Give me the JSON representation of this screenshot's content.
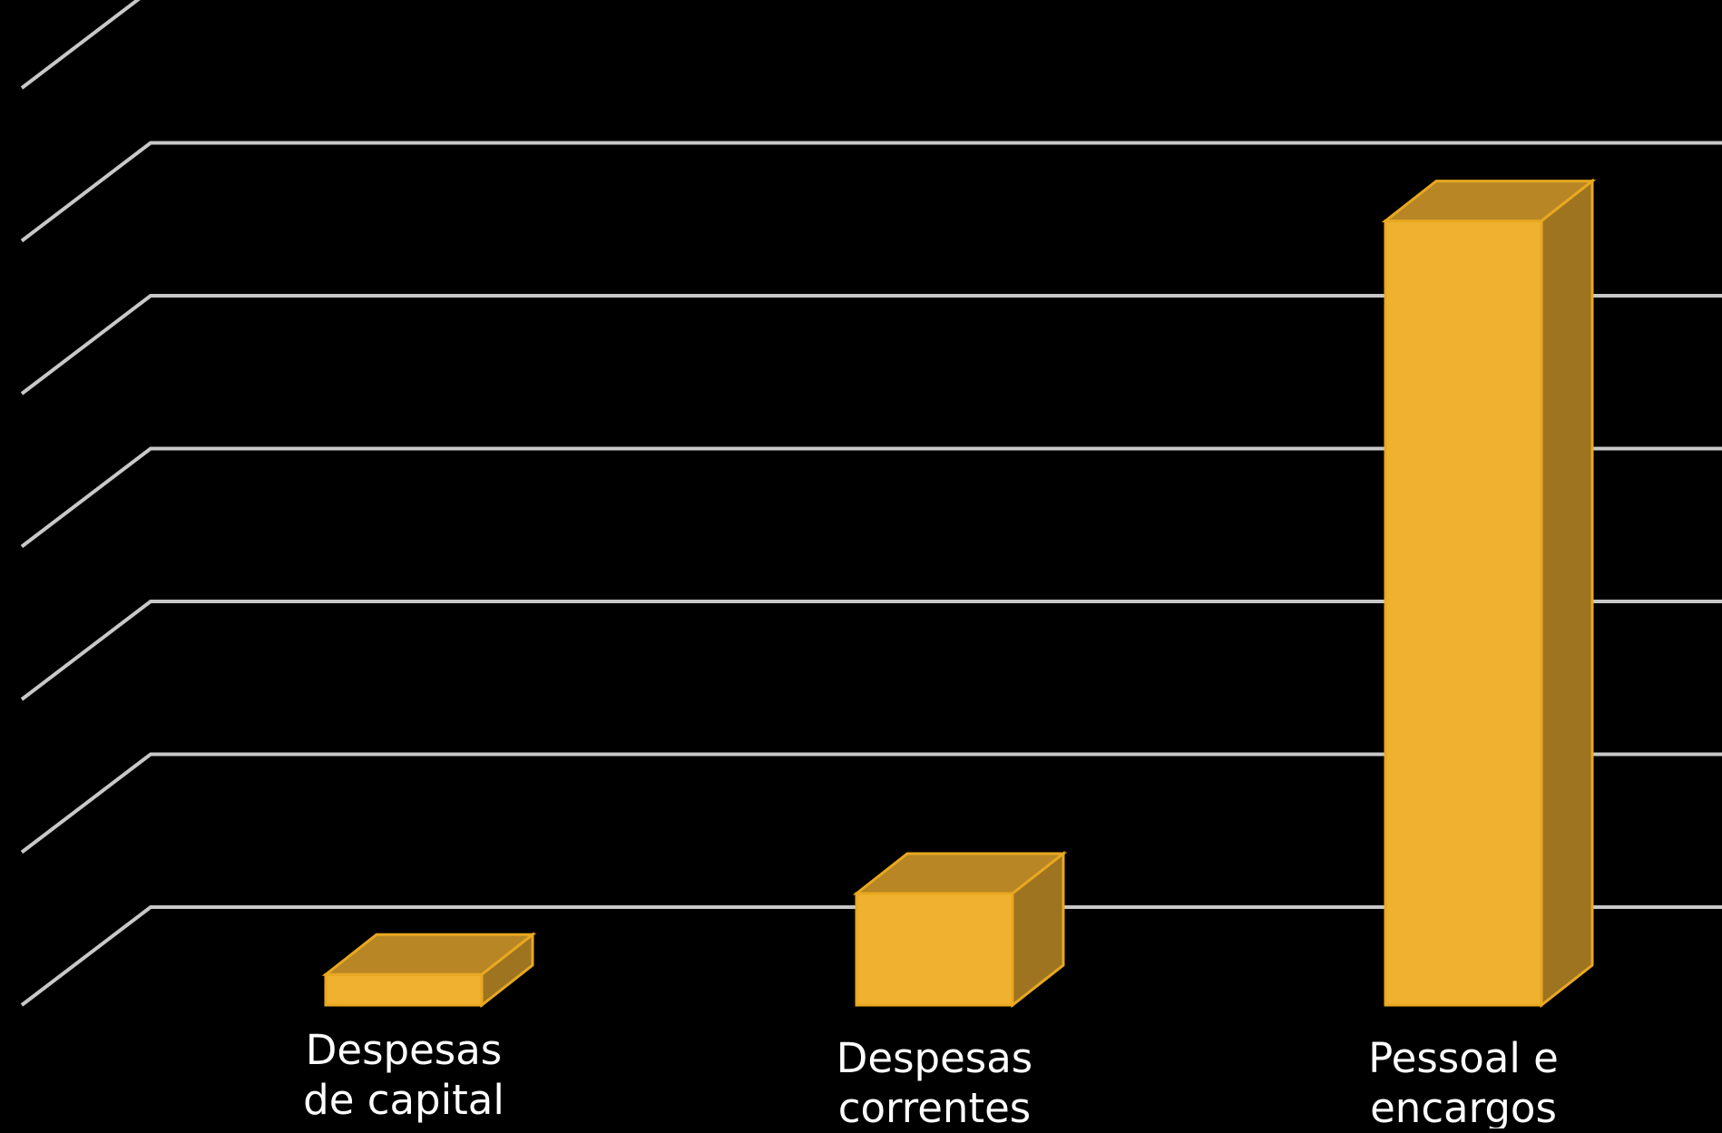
{
  "chart_data": {
    "type": "bar",
    "categories": [
      [
        "Despesas",
        "de capital"
      ],
      [
        "Despesas",
        "correntes"
      ],
      [
        "Pessoal e",
        "encargos"
      ]
    ],
    "values": [
      0.2,
      0.73,
      5.13
    ],
    "ylim": [
      0,
      6
    ],
    "grid": true,
    "three_d": true,
    "colors": {
      "background": "#000000",
      "grid": "#c8c8c8",
      "bar_front": "#f0b130",
      "bar_top": "#b88624",
      "bar_side": "#9e7420",
      "bar_edge": "#e8a820",
      "label": "#ffffff"
    }
  }
}
